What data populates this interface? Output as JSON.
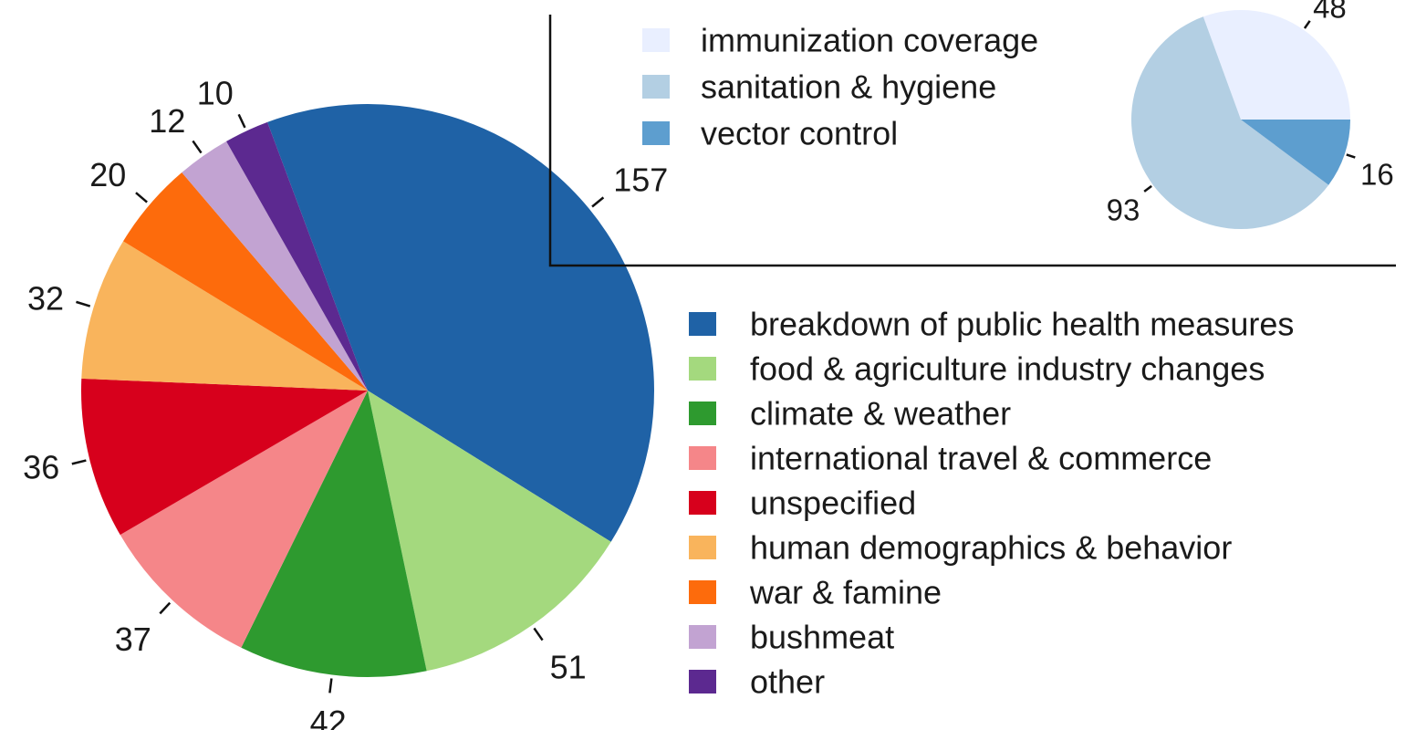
{
  "chart_data": [
    {
      "type": "pie",
      "title": "",
      "legend": "right",
      "slices": [
        {
          "label": "breakdown of public health measures",
          "value": 157,
          "color": "#1f62a6"
        },
        {
          "label": "food & agriculture industry changes",
          "value": 51,
          "color": "#a4d97e"
        },
        {
          "label": "climate & weather",
          "value": 42,
          "color": "#2e9a2f"
        },
        {
          "label": "international travel & commerce",
          "value": 37,
          "color": "#f58689"
        },
        {
          "label": "unspecified",
          "value": 36,
          "color": "#d7001c"
        },
        {
          "label": "human demographics & behavior",
          "value": 32,
          "color": "#f9b45c"
        },
        {
          "label": "war & famine",
          "value": 20,
          "color": "#fd6b0c"
        },
        {
          "label": "bushmeat",
          "value": 12,
          "color": "#c2a3d2"
        },
        {
          "label": "other",
          "value": 10,
          "color": "#5c2990"
        }
      ]
    },
    {
      "type": "pie",
      "title": "",
      "legend": "top-left",
      "slices": [
        {
          "label": "immunization coverage",
          "value": 48,
          "color": "#e9efff"
        },
        {
          "label": "sanitation & hygiene",
          "value": 93,
          "color": "#b3cfe3"
        },
        {
          "label": "vector control",
          "value": 16,
          "color": "#5d9ecf"
        }
      ]
    }
  ]
}
